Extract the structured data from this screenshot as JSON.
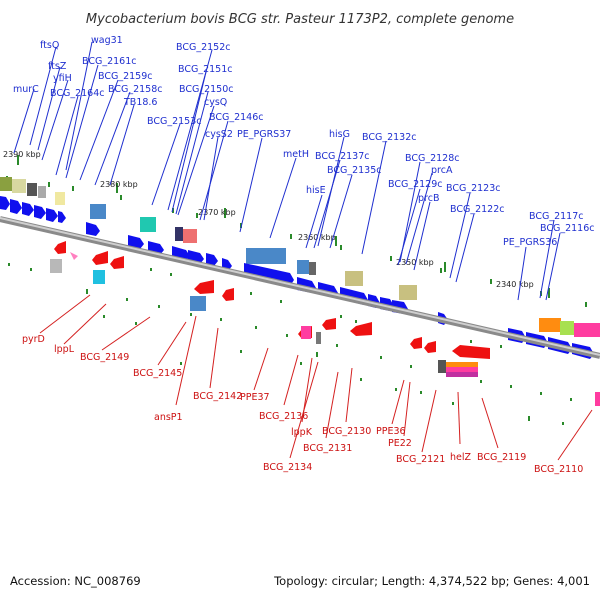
{
  "title": "Mycobacterium bovis BCG str. Pasteur 1173P2, complete genome",
  "footer": {
    "accession": "Accession: NC_008769",
    "stats": "Topology: circular; Length: 4,374,522 bp; Genes: 4,001"
  },
  "colors": {
    "forward_label": "#1f2fcf",
    "reverse_label": "#cc1111",
    "forward_arrow": "#1010ee",
    "reverse_arrow": "#ee1111",
    "backbone": "#9a9a9a",
    "tick": "#2a8a2a"
  },
  "scale": [
    "2390 kbp",
    "2380 kbp",
    "2370 kbp",
    "2360 kbp",
    "2350 kbp",
    "2340 kbp"
  ],
  "forward_genes": [
    "murC",
    "ftsQ",
    "ftsZ",
    "yfiH",
    "wag31",
    "BCG_2161c",
    "BCG_2164c",
    "BCG_2159c",
    "BCG_2158c",
    "TB18.6",
    "BCG_2152c",
    "BCG_2151c",
    "BCG_2150c",
    "cysQ",
    "BCG_2153c",
    "BCG_2146c",
    "cysS2",
    "PE_PGRS37",
    "hisG",
    "metH",
    "BCG_2137c",
    "BCG_2135c",
    "BCG_2132c",
    "hisE",
    "BCG_2128c",
    "prcA",
    "BCG_2129c",
    "prcB",
    "BCG_2123c",
    "BCG_2122c",
    "BCG_2117c",
    "BCG_2116c",
    "PE_PGRS36"
  ],
  "reverse_genes": [
    "pyrD",
    "lppL",
    "BCG_2149",
    "BCG_2145",
    "ansP1",
    "BCG_2142",
    "PPE37",
    "BCG_2136",
    "lppK",
    "BCG_2134",
    "BCG_2131",
    "BCG_2130",
    "PPE36",
    "PE22",
    "BCG_2121",
    "helZ",
    "BCG_2119",
    "BCG_2110"
  ]
}
